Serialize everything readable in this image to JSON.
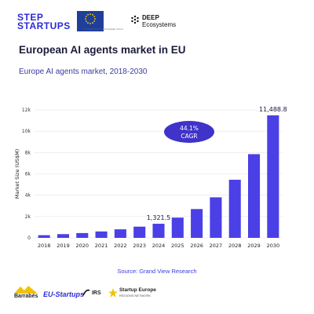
{
  "header": {
    "step_logo_line1": "STEP",
    "step_logo_line2": "STARTUPS",
    "eu_caption": "Co-funded by the European Union",
    "deep_line1": "DEEP",
    "deep_line2": "Ecosystems"
  },
  "title": "European AI agents market in EU",
  "subtitle": "Europe AI agents market, 2018-2030",
  "source": "Source:  Grand View Research",
  "footer": {
    "logo1": "Barrabés",
    "logo2": "EU-Startups",
    "logo3": "IRS",
    "logo4_line1": "Startup Europe",
    "logo4_line2": "REGIONS NETWORK"
  },
  "colors": {
    "bar": "#4b3fe6",
    "cagr_bubble": "#3f33c9",
    "brand_blue": "#2a2ad8"
  },
  "chart_data": {
    "type": "bar",
    "categories": [
      "2018",
      "2019",
      "2020",
      "2021",
      "2022",
      "2023",
      "2024",
      "2025",
      "2026",
      "2027",
      "2028",
      "2029",
      "2030"
    ],
    "values": [
      250,
      350,
      450,
      600,
      800,
      1050,
      1321.5,
      1900,
      2700,
      3800,
      5450,
      7850,
      11488.8
    ],
    "ylabel": "Market Size (US$M)",
    "ylim": [
      0,
      12000
    ],
    "yticks": [
      0,
      2000,
      4000,
      6000,
      8000,
      10000,
      12000
    ],
    "ytick_labels": [
      "0",
      "2k",
      "4k",
      "6k",
      "8k",
      "10k",
      "12k"
    ],
    "data_labels": [
      {
        "category": "2024",
        "text": "1,321.5"
      },
      {
        "category": "2030",
        "text": "11,488.8"
      }
    ],
    "annotation": {
      "line1": "44.1%",
      "line2": "CAGR"
    },
    "grid": true
  }
}
